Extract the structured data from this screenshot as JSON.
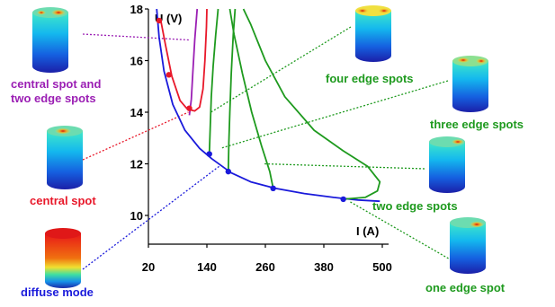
{
  "chart_data": {
    "type": "line",
    "title": "",
    "xlabel": "I (A)",
    "ylabel": "U (V)",
    "xlim": [
      20,
      500
    ],
    "ylim": [
      10,
      18
    ],
    "x_ticks": [
      "20",
      "140",
      "260",
      "380",
      "500"
    ],
    "y_ticks": [
      "10",
      "12",
      "14",
      "16",
      "18"
    ],
    "grid": false,
    "series": [
      {
        "name": "diffuse mode",
        "color": "#1a1adb",
        "points": [
          [
            37,
            18
          ],
          [
            42,
            16.9
          ],
          [
            52,
            15.6
          ],
          [
            70,
            14.3
          ],
          [
            95,
            13.3
          ],
          [
            125,
            12.6
          ],
          [
            150,
            12.2
          ],
          [
            190,
            11.65
          ],
          [
            230,
            11.3
          ],
          [
            280,
            11.05
          ],
          [
            340,
            10.85
          ],
          [
            400,
            10.7
          ],
          [
            450,
            10.6
          ],
          [
            495,
            10.55
          ]
        ]
      },
      {
        "name": "central spot",
        "color": "#e8182a",
        "points": [
          [
            45,
            17.6
          ],
          [
            55,
            16.6
          ],
          [
            68,
            15.4
          ],
          [
            85,
            14.45
          ],
          [
            100,
            14.12
          ],
          [
            115,
            14.05
          ],
          [
            125,
            14.2
          ],
          [
            132,
            14.9
          ],
          [
            136,
            16.0
          ],
          [
            139,
            17.3
          ],
          [
            140,
            18
          ]
        ]
      },
      {
        "name": "central spot and two edge spots",
        "color": "#9b1fb4",
        "points": [
          [
            104,
            13.88
          ],
          [
            108,
            14.5
          ],
          [
            111,
            15.5
          ],
          [
            115,
            16.8
          ],
          [
            120,
            18
          ]
        ]
      },
      {
        "name": "four edge spots",
        "color": "#1e9a1e",
        "points": [
          [
            145,
            12.38
          ],
          [
            147,
            13.5
          ],
          [
            149,
            14.6
          ],
          [
            153,
            15.8
          ],
          [
            158,
            17.0
          ],
          [
            163,
            18
          ]
        ]
      },
      {
        "name": "three edge spots",
        "color": "#1e9a1e",
        "points": [
          [
            184,
            11.7
          ],
          [
            185,
            12.8
          ],
          [
            187,
            14.0
          ],
          [
            190,
            15.5
          ],
          [
            194,
            17.0
          ],
          [
            198,
            18
          ]
        ]
      },
      {
        "name": "two edge spots",
        "color": "#1e9a1e",
        "points": [
          [
            276,
            11.05
          ],
          [
            269,
            11.7
          ],
          [
            252,
            12.7
          ],
          [
            232,
            14.0
          ],
          [
            213,
            15.5
          ],
          [
            196,
            17.0
          ],
          [
            187,
            18
          ]
        ]
      },
      {
        "name": "one edge spot",
        "color": "#1e9a1e",
        "points": [
          [
            420,
            10.63
          ],
          [
            465,
            10.7
          ],
          [
            490,
            10.95
          ],
          [
            495,
            11.3
          ],
          [
            470,
            11.9
          ],
          [
            420,
            12.5
          ],
          [
            360,
            13.3
          ],
          [
            300,
            14.6
          ],
          [
            260,
            16.0
          ],
          [
            230,
            17.4
          ],
          [
            215,
            18
          ]
        ]
      }
    ],
    "markers": [
      {
        "x": 42,
        "y": 17.55,
        "color": "#e8182a"
      },
      {
        "x": 62,
        "y": 15.45,
        "color": "#e8182a"
      },
      {
        "x": 104,
        "y": 14.15,
        "color": "#e8182a"
      },
      {
        "x": 145,
        "y": 12.38,
        "color": "#1a1adb"
      },
      {
        "x": 184,
        "y": 11.7,
        "color": "#1a1adb"
      },
      {
        "x": 276,
        "y": 11.05,
        "color": "#1a1adb"
      },
      {
        "x": 420,
        "y": 10.63,
        "color": "#1a1adb"
      }
    ],
    "annotations": [
      {
        "label_lines": [
          "central spot and",
          "two edge spots"
        ],
        "color": "#9b1fb4",
        "target": [
          104,
          16.8
        ]
      },
      {
        "label_lines": [
          "central spot"
        ],
        "color": "#e8182a",
        "target": [
          102,
          14.0
        ]
      },
      {
        "label_lines": [
          "diffuse mode"
        ],
        "color": "#1a1adb",
        "target": [
          165,
          11.9
        ]
      },
      {
        "label_lines": [
          "four edge spots"
        ],
        "color": "#1e9a1e",
        "target": [
          148,
          14.0
        ]
      },
      {
        "label_lines": [
          "three edge spots"
        ],
        "color": "#1e9a1e",
        "target": [
          168,
          12.6
        ]
      },
      {
        "label_lines": [
          "two edge spots"
        ],
        "color": "#1e9a1e",
        "target": [
          258,
          12.0
        ]
      },
      {
        "label_lines": [
          "one edge spot"
        ],
        "color": "#1e9a1e",
        "target": [
          432,
          10.55
        ]
      }
    ]
  }
}
